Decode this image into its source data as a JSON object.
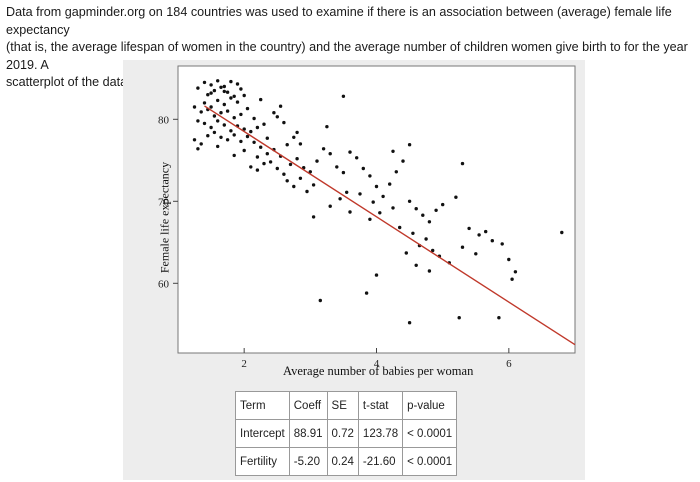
{
  "intro": {
    "line1": "Data from gapminder.org on 184 countries was used to examine if there is an association between (average) female life expectancy",
    "line2": "(that is, the average lifespan of women in the country) and the average number of children women give birth to for the year 2019. A",
    "line3": "scatterplot of the data and a regression table from the Corr/Regression applet follows."
  },
  "colors": {
    "points": "#111111",
    "regression_line": "#c0392b",
    "panel_bg": "#ededed",
    "plot_bg": "#ffffff"
  },
  "chart_data": {
    "type": "scatter",
    "xlabel": "Average number of babies per woman",
    "ylabel": "Female life expectancy",
    "xlim": [
      1.0,
      7.0
    ],
    "ylim": [
      51.5,
      86.5
    ],
    "xticks": [
      2,
      4,
      6
    ],
    "yticks": [
      60,
      70,
      80
    ],
    "grid": false,
    "points": [
      [
        1.3,
        83.8
      ],
      [
        1.4,
        84.5
      ],
      [
        1.45,
        83.0
      ],
      [
        1.5,
        84.2
      ],
      [
        1.55,
        83.5
      ],
      [
        1.6,
        84.7
      ],
      [
        1.65,
        83.9
      ],
      [
        1.7,
        84.0
      ],
      [
        1.75,
        83.3
      ],
      [
        1.8,
        84.6
      ],
      [
        1.85,
        82.8
      ],
      [
        1.9,
        84.3
      ],
      [
        1.4,
        82.0
      ],
      [
        1.5,
        81.5
      ],
      [
        1.6,
        82.3
      ],
      [
        1.7,
        81.8
      ],
      [
        1.8,
        82.6
      ],
      [
        1.9,
        82.1
      ],
      [
        1.35,
        80.9
      ],
      [
        1.45,
        81.2
      ],
      [
        1.55,
        80.4
      ],
      [
        1.65,
        80.8
      ],
      [
        1.75,
        81.0
      ],
      [
        1.85,
        80.2
      ],
      [
        1.95,
        80.6
      ],
      [
        1.4,
        79.5
      ],
      [
        1.5,
        79.0
      ],
      [
        1.6,
        79.8
      ],
      [
        1.7,
        79.3
      ],
      [
        1.8,
        78.6
      ],
      [
        1.9,
        79.2
      ],
      [
        2.0,
        78.8
      ],
      [
        1.45,
        78.0
      ],
      [
        1.55,
        78.4
      ],
      [
        1.65,
        77.8
      ],
      [
        1.75,
        77.5
      ],
      [
        1.85,
        78.1
      ],
      [
        1.95,
        77.3
      ],
      [
        2.05,
        77.9
      ],
      [
        2.1,
        78.5
      ],
      [
        2.2,
        79.0
      ],
      [
        2.3,
        79.4
      ],
      [
        2.15,
        77.2
      ],
      [
        2.25,
        76.6
      ],
      [
        2.35,
        77.7
      ],
      [
        2.45,
        80.8
      ],
      [
        2.5,
        80.3
      ],
      [
        2.55,
        81.6
      ],
      [
        2.6,
        79.6
      ],
      [
        2.35,
        75.8
      ],
      [
        2.45,
        76.3
      ],
      [
        2.55,
        75.5
      ],
      [
        2.65,
        76.9
      ],
      [
        2.75,
        77.8
      ],
      [
        2.8,
        78.4
      ],
      [
        2.85,
        77.0
      ],
      [
        2.4,
        74.8
      ],
      [
        2.5,
        74.0
      ],
      [
        2.6,
        73.3
      ],
      [
        2.7,
        74.5
      ],
      [
        2.8,
        75.2
      ],
      [
        2.9,
        74.1
      ],
      [
        3.0,
        73.6
      ],
      [
        2.65,
        72.5
      ],
      [
        2.75,
        71.8
      ],
      [
        2.85,
        72.8
      ],
      [
        2.95,
        71.2
      ],
      [
        3.05,
        72.0
      ],
      [
        2.1,
        74.2
      ],
      [
        2.2,
        73.8
      ],
      [
        1.25,
        77.5
      ],
      [
        1.35,
        77.0
      ],
      [
        3.2,
        76.4
      ],
      [
        3.3,
        75.8
      ],
      [
        3.1,
        74.9
      ],
      [
        3.4,
        74.2
      ],
      [
        3.5,
        73.5
      ],
      [
        3.6,
        76.0
      ],
      [
        3.7,
        75.3
      ],
      [
        3.8,
        74.0
      ],
      [
        3.9,
        73.1
      ],
      [
        4.0,
        71.8
      ],
      [
        3.55,
        71.1
      ],
      [
        3.45,
        70.3
      ],
      [
        3.75,
        70.9
      ],
      [
        3.95,
        69.9
      ],
      [
        4.1,
        70.6
      ],
      [
        4.2,
        72.1
      ],
      [
        4.3,
        73.6
      ],
      [
        4.4,
        74.9
      ],
      [
        3.3,
        69.4
      ],
      [
        3.6,
        68.7
      ],
      [
        3.9,
        67.8
      ],
      [
        4.05,
        68.6
      ],
      [
        4.25,
        69.2
      ],
      [
        4.5,
        70.0
      ],
      [
        4.6,
        69.1
      ],
      [
        4.7,
        68.3
      ],
      [
        4.8,
        67.5
      ],
      [
        4.9,
        68.9
      ],
      [
        5.0,
        69.6
      ],
      [
        5.2,
        70.5
      ],
      [
        4.35,
        66.8
      ],
      [
        4.55,
        66.1
      ],
      [
        4.65,
        64.6
      ],
      [
        4.75,
        65.4
      ],
      [
        4.85,
        64.0
      ],
      [
        4.95,
        63.3
      ],
      [
        5.1,
        62.5
      ],
      [
        4.45,
        63.7
      ],
      [
        4.6,
        62.2
      ],
      [
        4.8,
        61.5
      ],
      [
        5.4,
        66.7
      ],
      [
        5.55,
        65.9
      ],
      [
        5.65,
        66.3
      ],
      [
        5.75,
        65.2
      ],
      [
        5.3,
        64.4
      ],
      [
        5.5,
        63.6
      ],
      [
        5.9,
        64.8
      ],
      [
        6.0,
        62.9
      ],
      [
        6.1,
        61.4
      ],
      [
        6.05,
        60.5
      ],
      [
        6.8,
        66.2
      ],
      [
        5.3,
        74.6
      ],
      [
        4.5,
        76.9
      ],
      [
        4.25,
        76.1
      ],
      [
        3.25,
        79.1
      ],
      [
        3.5,
        82.8
      ],
      [
        3.05,
        68.1
      ],
      [
        4.0,
        61.0
      ],
      [
        3.15,
        57.9
      ],
      [
        5.85,
        55.8
      ],
      [
        5.25,
        55.8
      ],
      [
        4.5,
        55.2
      ],
      [
        3.85,
        58.8
      ],
      [
        1.3,
        76.4
      ],
      [
        1.6,
        76.7
      ],
      [
        1.85,
        75.6
      ],
      [
        2.0,
        76.2
      ],
      [
        2.2,
        75.4
      ],
      [
        2.3,
        74.6
      ],
      [
        2.05,
        81.3
      ],
      [
        2.15,
        80.1
      ],
      [
        2.25,
        82.4
      ],
      [
        1.5,
        83.2
      ],
      [
        1.7,
        83.4
      ],
      [
        1.95,
        83.7
      ],
      [
        2.0,
        82.9
      ],
      [
        1.3,
        79.8
      ],
      [
        1.25,
        81.5
      ]
    ],
    "regression": {
      "intercept": 88.91,
      "slope": -5.2,
      "x_range": [
        1.4,
        7.0
      ]
    }
  },
  "regression_table": {
    "headers": [
      "Term",
      "Coeff",
      "SE",
      "t-stat",
      "p-value"
    ],
    "rows": [
      [
        "Intercept",
        "88.91",
        "0.72",
        "123.78",
        "< 0.0001"
      ],
      [
        "Fertility",
        "-5.20",
        "0.24",
        "-21.60",
        "< 0.0001"
      ]
    ]
  }
}
